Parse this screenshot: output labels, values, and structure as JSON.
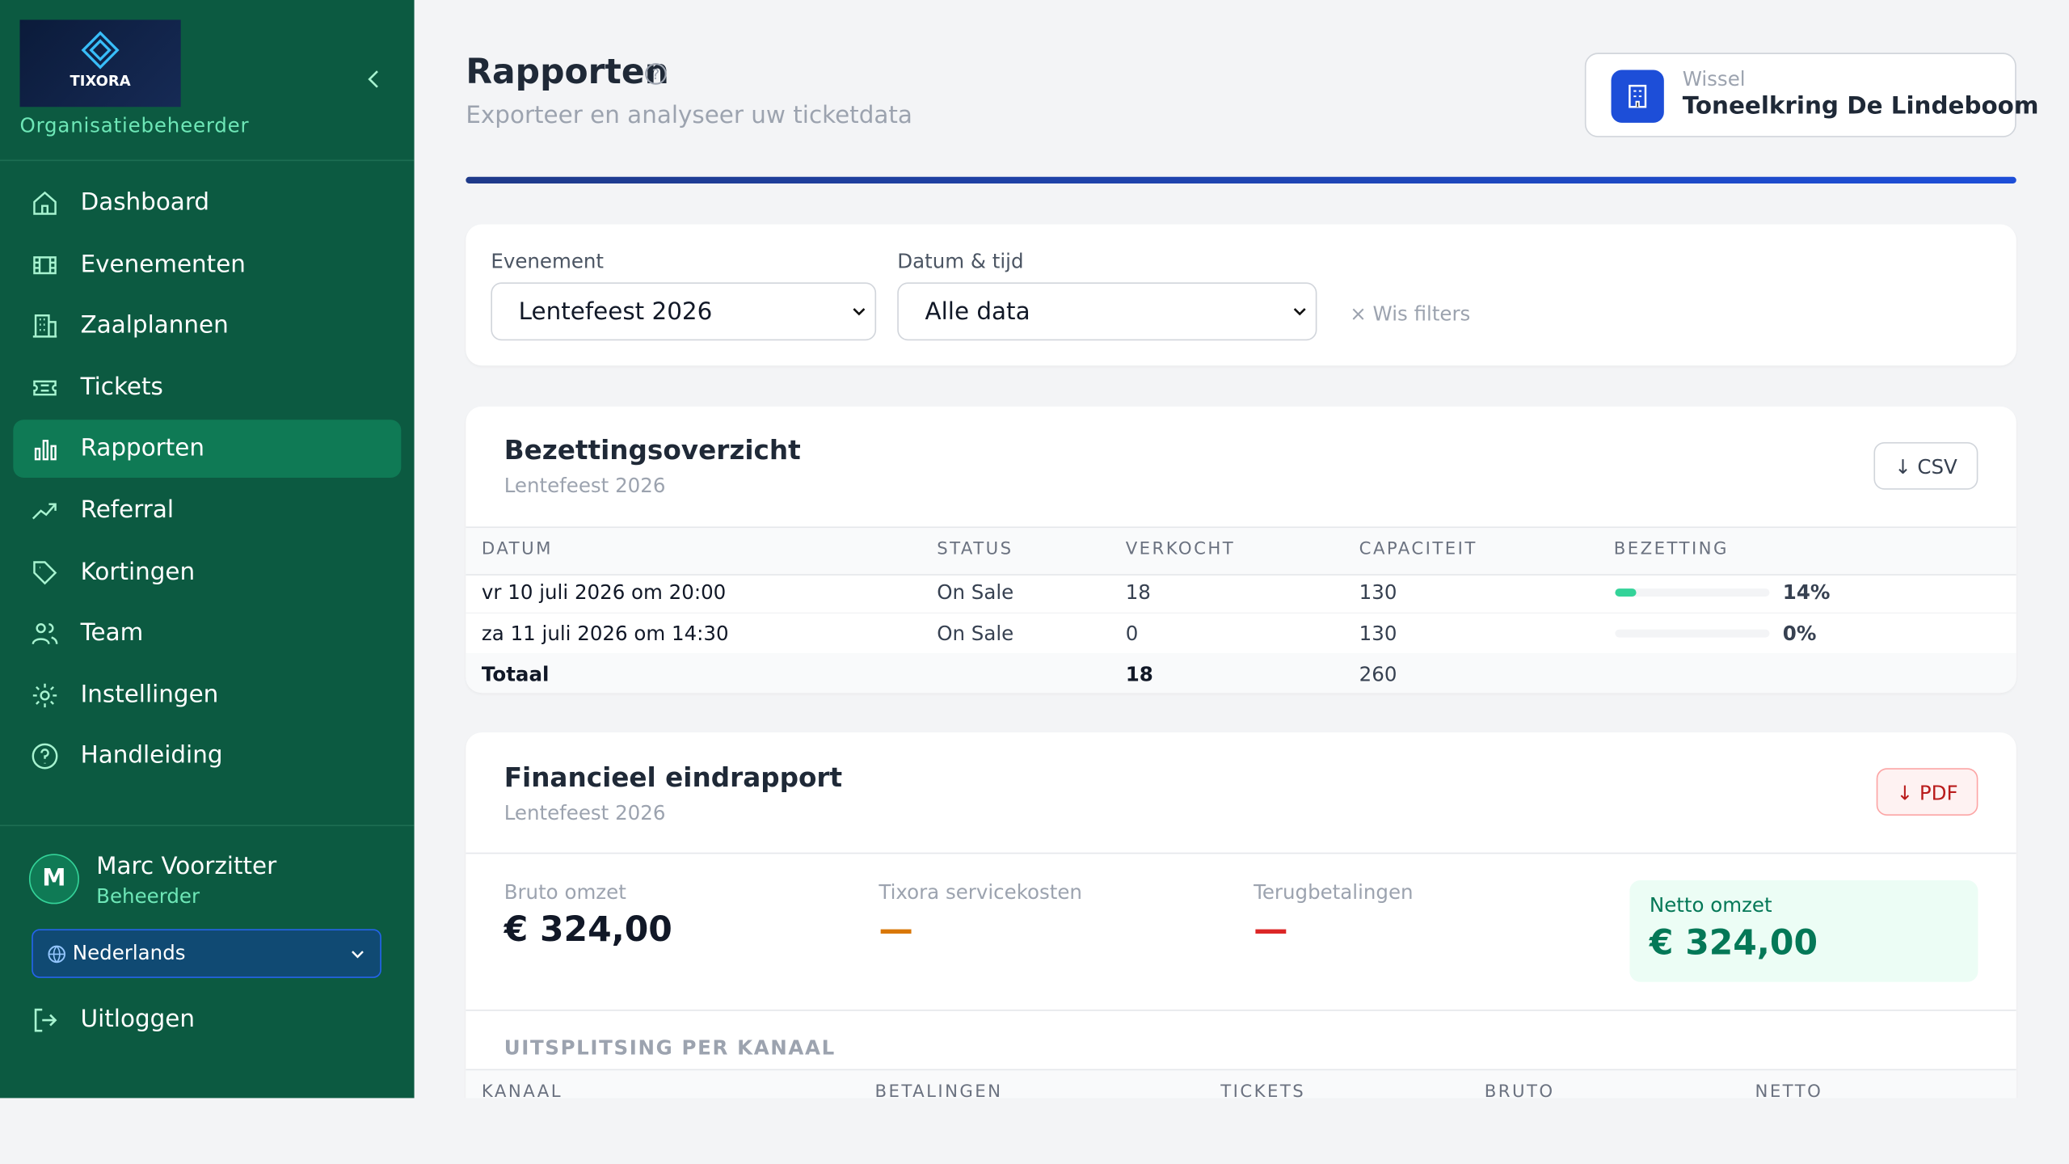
{
  "sidebar": {
    "logo": "TIXORA",
    "role": "Organisatiebeheerder",
    "nav": [
      "Dashboard",
      "Evenementen",
      "Zaalplannen",
      "Tickets",
      "Rapporten",
      "Referral",
      "Kortingen",
      "Team",
      "Instellingen",
      "Handleiding"
    ],
    "user": {
      "initial": "M",
      "name": "Marc Voorzitter",
      "role": "Beheerder"
    },
    "language": "Nederlands",
    "logout": "Uitloggen"
  },
  "header": {
    "title": "Rapporten",
    "subtitle": "Exporteer en analyseer uw ticketdata",
    "switch_label": "Wissel",
    "organization": "Toneelkring De Lindeboom"
  },
  "filters": {
    "event_label": "Evenement",
    "event_value": "Lentefeest 2026",
    "date_label": "Datum & tijd",
    "date_value": "Alle data",
    "clear": "× Wis filters"
  },
  "occupancy": {
    "title": "Bezettingsoverzicht",
    "subtitle": "Lentefeest 2026",
    "export": "↓ CSV",
    "columns": [
      "DATUM",
      "STATUS",
      "VERKOCHT",
      "CAPACITEIT",
      "BEZETTING"
    ],
    "rows": [
      {
        "date": "vr 10 juli 2026 om 20:00",
        "status": "On Sale",
        "sold": 18,
        "capacity": 130,
        "occupancy": {
          "value": 14,
          "label": "14%"
        }
      },
      {
        "date": "za 11 juli 2026 om 14:30",
        "status": "On Sale",
        "sold": 0,
        "capacity": 130,
        "occupancy": {
          "value": 0,
          "label": "0%"
        }
      }
    ],
    "total": {
      "label": "Totaal",
      "sold": 18,
      "capacity": 260
    }
  },
  "financial": {
    "title": "Financieel eindrapport",
    "subtitle": "Lentefeest 2026",
    "export": "↓ PDF",
    "metrics": [
      {
        "label": "Bruto omzet",
        "value": "€ 324,00"
      },
      {
        "label": "Tixora servicekosten",
        "value": "—"
      },
      {
        "label": "Terugbetalingen",
        "value": "—"
      },
      {
        "label": "Netto omzet",
        "value": "€ 324,00"
      }
    ],
    "breakdown_title": "UITSPLITSING PER KANAAL",
    "columns": [
      "KANAAL",
      "BETALINGEN",
      "TICKETS",
      "BRUTO",
      "NETTO"
    ]
  }
}
